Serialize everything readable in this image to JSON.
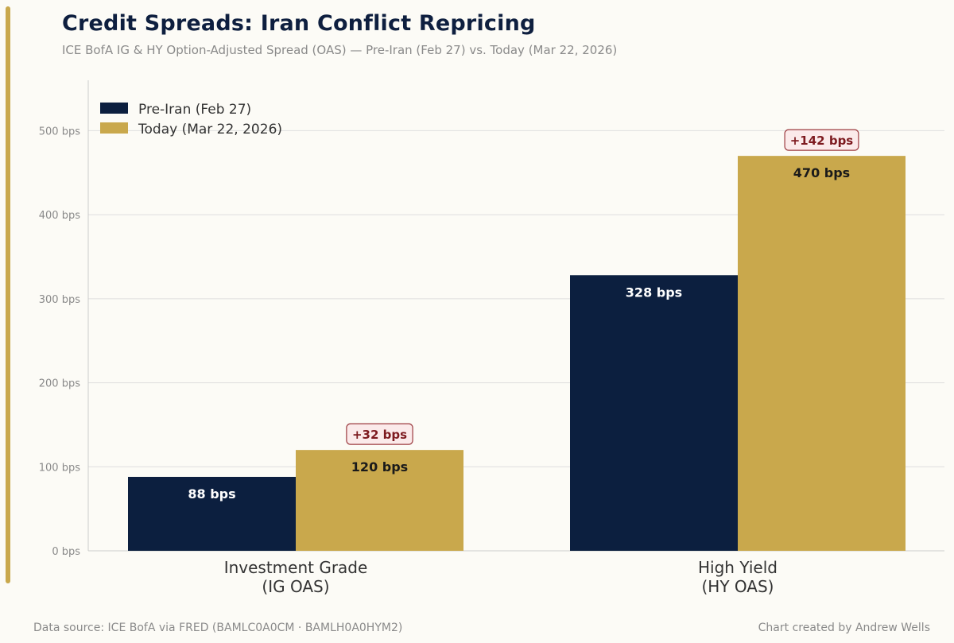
{
  "header": {
    "title": "Credit Spreads: Iran Conflict Repricing",
    "subtitle": "ICE BofA IG & HY Option-Adjusted Spread (OAS) — Pre-Iran (Feb 27) vs. Today (Mar 22, 2026)"
  },
  "footer": {
    "source": "Data source: ICE BofA via FRED (BAMLC0A0CM · BAMLH0A0HYM2)",
    "credit": "Chart created by Andrew Wells"
  },
  "colors": {
    "background": "#fcfbf6",
    "pre": "#0c1f3f",
    "today": "#c9a84c",
    "accent": "#c9a84c",
    "delta_text": "#7d1a1f",
    "delta_bg": "#fbeaea",
    "delta_border": "#9b3a3f",
    "grid": "#dedede",
    "tick_text": "#8a8a8a",
    "category_text": "#333333"
  },
  "chart_data": {
    "type": "bar",
    "title": "Credit Spreads: Iran Conflict Repricing",
    "xlabel": "",
    "ylabel": "",
    "categories": [
      [
        "Investment Grade",
        "(IG OAS)"
      ],
      [
        "High Yield",
        "(HY OAS)"
      ]
    ],
    "series": [
      {
        "name": "Pre-Iran (Feb 27)",
        "values": [
          88,
          328
        ],
        "labels": [
          "88 bps",
          "328 bps"
        ],
        "color": "#0c1f3f",
        "label_color": "#ffffff"
      },
      {
        "name": "Today (Mar 22, 2026)",
        "values": [
          120,
          470
        ],
        "labels": [
          "120 bps",
          "470 bps"
        ],
        "color": "#c9a84c",
        "label_color": "#1a1a1a"
      }
    ],
    "deltas": [
      "+32 bps",
      "+142 bps"
    ],
    "ylim": [
      0,
      560
    ],
    "yticks": [
      0,
      100,
      200,
      300,
      400,
      500
    ],
    "ytick_labels": [
      "0 bps",
      "100 bps",
      "200 bps",
      "300 bps",
      "400 bps",
      "500 bps"
    ],
    "grid": true,
    "legend_position": "top-left"
  }
}
